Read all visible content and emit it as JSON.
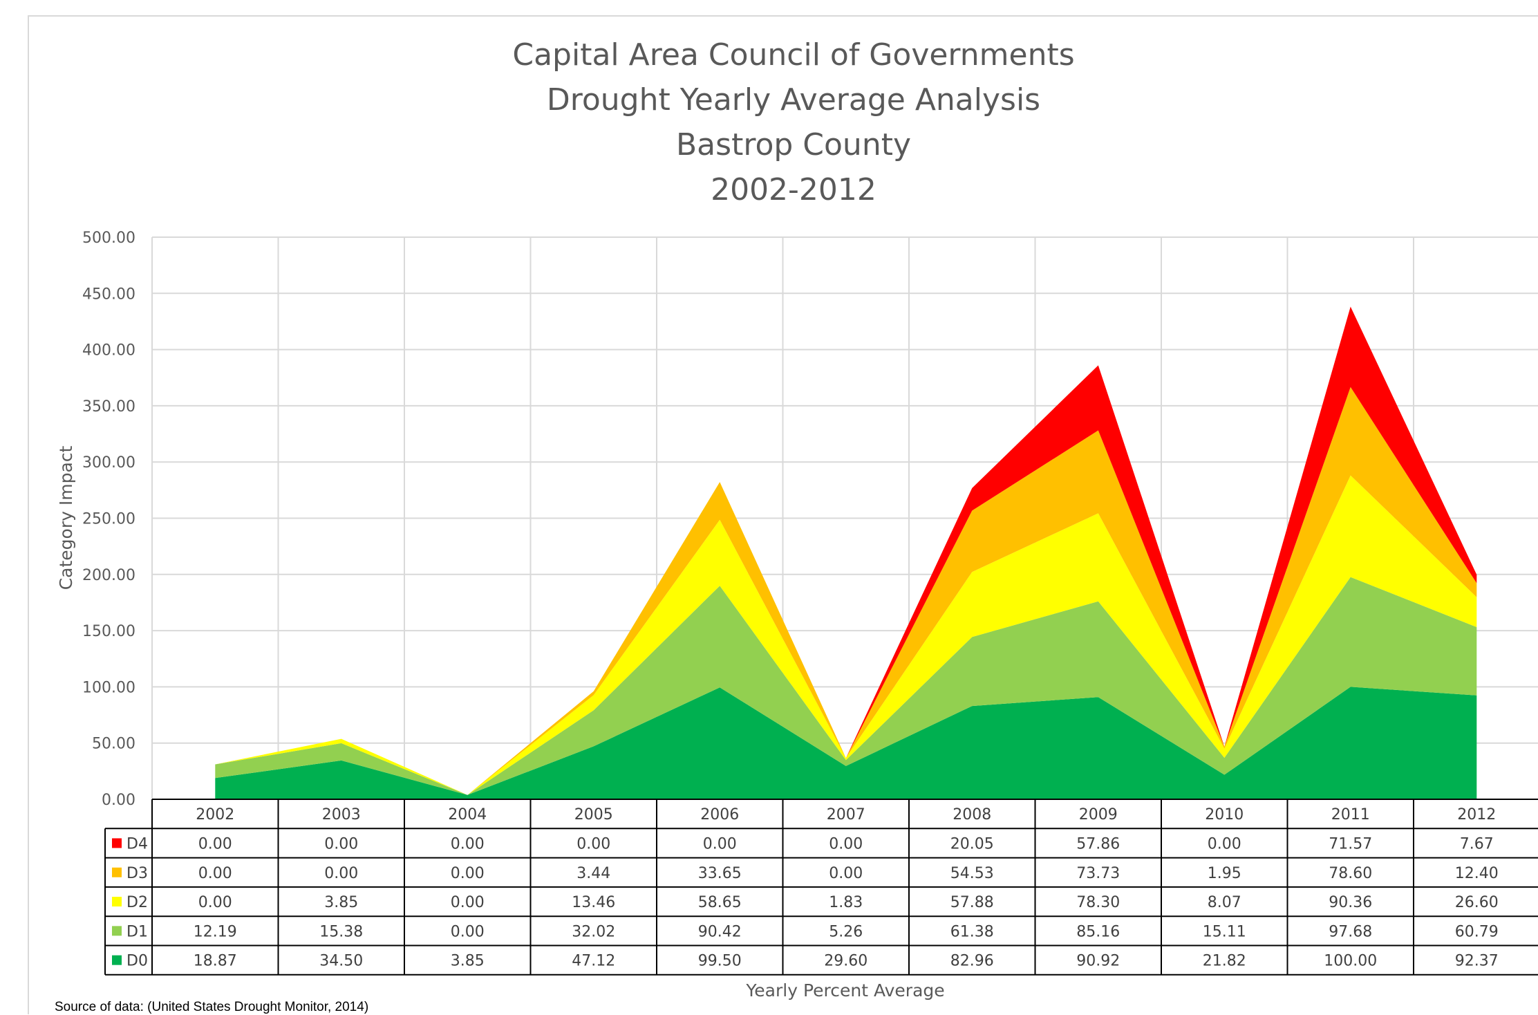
{
  "chart_data": {
    "type": "area",
    "stacked": true,
    "title_lines": [
      "Capital Area Council of Governments",
      "Drought Yearly Average Analysis",
      "Bastrop County",
      "2002-2012"
    ],
    "xlabel": "Yearly Percent Average",
    "ylabel": "Category Impact",
    "ylim": [
      0,
      500
    ],
    "ytick_labels": [
      "0.00",
      "50.00",
      "100.00",
      "150.00",
      "200.00",
      "250.00",
      "300.00",
      "350.00",
      "400.00",
      "450.00",
      "500.00"
    ],
    "grid": true,
    "legend": "data-table",
    "categories": [
      "2002",
      "2003",
      "2004",
      "2005",
      "2006",
      "2007",
      "2008",
      "2009",
      "2010",
      "2011",
      "2012"
    ],
    "series": [
      {
        "name": "D0",
        "color": "#00b050",
        "values": [
          18.87,
          34.5,
          3.85,
          47.12,
          99.5,
          29.6,
          82.96,
          90.92,
          21.82,
          100.0,
          92.37
        ],
        "labels": [
          "18.87",
          "34.50",
          "3.85",
          "47.12",
          "99.50",
          "29.60",
          "82.96",
          "90.92",
          "21.82",
          "100.00",
          "92.37"
        ]
      },
      {
        "name": "D1",
        "color": "#92d050",
        "values": [
          12.19,
          15.38,
          0.0,
          32.02,
          90.42,
          5.26,
          61.38,
          85.16,
          15.11,
          97.68,
          60.79
        ],
        "labels": [
          "12.19",
          "15.38",
          "0.00",
          "32.02",
          "90.42",
          "5.26",
          "61.38",
          "85.16",
          "15.11",
          "97.68",
          "60.79"
        ]
      },
      {
        "name": "D2",
        "color": "#ffff00",
        "values": [
          0.0,
          3.85,
          0.0,
          13.46,
          58.65,
          1.83,
          57.88,
          78.3,
          8.07,
          90.36,
          26.6
        ],
        "labels": [
          "0.00",
          "3.85",
          "0.00",
          "13.46",
          "58.65",
          "1.83",
          "57.88",
          "78.30",
          "8.07",
          "90.36",
          "26.60"
        ]
      },
      {
        "name": "D3",
        "color": "#ffc000",
        "values": [
          0.0,
          0.0,
          0.0,
          3.44,
          33.65,
          0.0,
          54.53,
          73.73,
          1.95,
          78.6,
          12.4
        ],
        "labels": [
          "0.00",
          "0.00",
          "0.00",
          "3.44",
          "33.65",
          "0.00",
          "54.53",
          "73.73",
          "1.95",
          "78.60",
          "12.40"
        ]
      },
      {
        "name": "D4",
        "color": "#ff0000",
        "values": [
          0.0,
          0.0,
          0.0,
          0.0,
          0.0,
          0.0,
          20.05,
          57.86,
          0.0,
          71.57,
          7.67
        ],
        "labels": [
          "0.00",
          "0.00",
          "0.00",
          "0.00",
          "0.00",
          "0.00",
          "20.05",
          "57.86",
          "0.00",
          "71.57",
          "7.67"
        ]
      }
    ],
    "table_row_order": [
      "D4",
      "D3",
      "D2",
      "D1",
      "D0"
    ]
  },
  "source_note": "Source of data: (United States Drought Monitor, 2014)"
}
